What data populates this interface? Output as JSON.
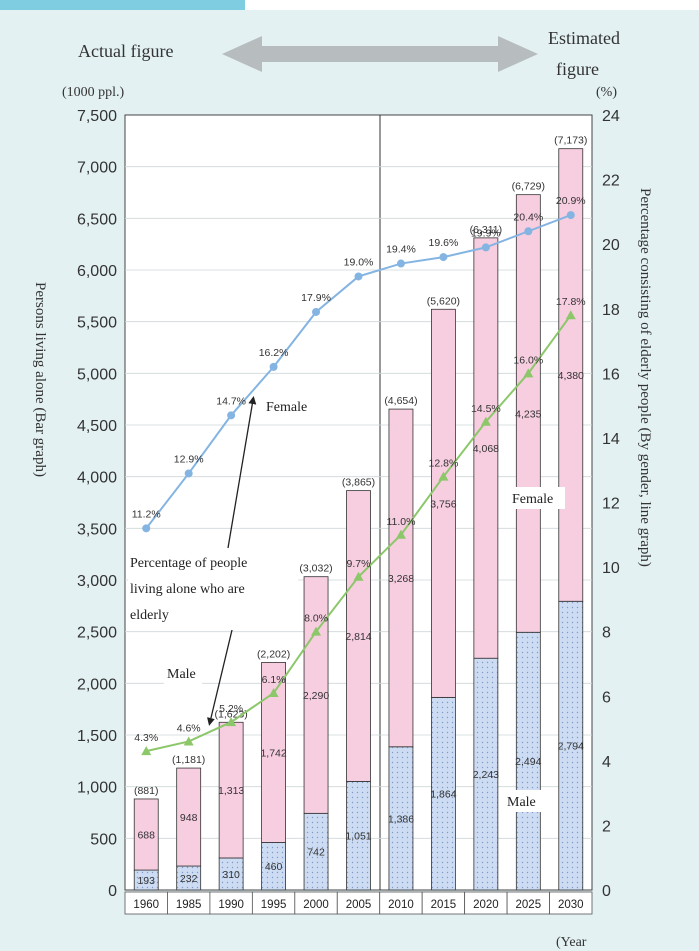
{
  "header": {
    "actual": "Actual figure",
    "estimated_1": "Estimated",
    "estimated_2": "figure"
  },
  "units": {
    "left": "(1000 ppl.)",
    "right": "(%)",
    "x": "(Year"
  },
  "annotations": {
    "female_line": "Female",
    "female_bar": "Female",
    "male_line": "Male",
    "male_bar": "Male",
    "note_line1": "Percentage of people",
    "note_line2": "living alone who are",
    "note_line3": "elderly"
  },
  "colors": {
    "female_bar": "#f7cde0",
    "male_bar": "#cddcf2",
    "female_line": "#84b4e2",
    "male_line": "#8cc76a",
    "background": "#e3f1f3"
  },
  "chart_data": {
    "type": "bar",
    "categories": [
      "1960",
      "1985",
      "1990",
      "1995",
      "2000",
      "2005",
      "2010",
      "2015",
      "2020",
      "2025",
      "2030"
    ],
    "xlabel": "(Year",
    "ylabel": "Persons living alone (Bar graph)",
    "y2label": "Percentage consisting of elderly people (By gender, line graph)",
    "ylim": [
      0,
      7500
    ],
    "y2lim": [
      0,
      24
    ],
    "yticks": [
      "0",
      "500",
      "1,000",
      "1,500",
      "2,000",
      "2,500",
      "3,000",
      "3,500",
      "4,000",
      "4,500",
      "5,000",
      "5,500",
      "6,000",
      "6,500",
      "7,000",
      "7,500"
    ],
    "y2ticks": [
      "0",
      "2",
      "4",
      "6",
      "8",
      "10",
      "12",
      "14",
      "16",
      "18",
      "20",
      "22",
      "24"
    ],
    "series": [
      {
        "name": "Male",
        "kind": "bar",
        "values": [
          193,
          232,
          310,
          460,
          742,
          1051,
          1386,
          1864,
          2243,
          2494,
          2794
        ],
        "labels": [
          "193",
          "232",
          "310",
          "460",
          "742",
          "1,051",
          "1,386",
          "1,864",
          "2,243",
          "2,494",
          "2,794"
        ]
      },
      {
        "name": "Female",
        "kind": "bar",
        "values": [
          688,
          948,
          1313,
          1742,
          2290,
          2814,
          3268,
          3756,
          4068,
          4235,
          4380
        ],
        "labels": [
          "688",
          "948",
          "1,313",
          "1,742",
          "2,290",
          "2,814",
          "3,268",
          "3,756",
          "4,068",
          "4,235",
          "4,380"
        ]
      },
      {
        "name": "Female",
        "kind": "line",
        "values": [
          11.2,
          12.9,
          14.7,
          16.2,
          17.9,
          19.0,
          19.4,
          19.6,
          19.9,
          20.4,
          20.9
        ],
        "labels": [
          "11.2%",
          "12.9%",
          "14.7%",
          "16.2%",
          "17.9%",
          "19.0%",
          "19.4%",
          "19.6%",
          "19.9%",
          "20.4%",
          "20.9%"
        ]
      },
      {
        "name": "Male",
        "kind": "line",
        "values": [
          4.3,
          4.6,
          5.2,
          6.1,
          8.0,
          9.7,
          11.0,
          12.8,
          14.5,
          16.0,
          17.8
        ],
        "labels": [
          "4.3%",
          "4.6%",
          "5.2%",
          "6.1%",
          "8.0%",
          "9.7%",
          "11.0%",
          "12.8%",
          "14.5%",
          "16.0%",
          "17.8%"
        ]
      }
    ],
    "totals": [
      "(881)",
      "(1,181)",
      "(1,623)",
      "(2,202)",
      "(3,032)",
      "(3,865)",
      "(4,654)",
      "(5,620)",
      "(6,311)",
      "(6,729)",
      "(7,173)"
    ]
  }
}
